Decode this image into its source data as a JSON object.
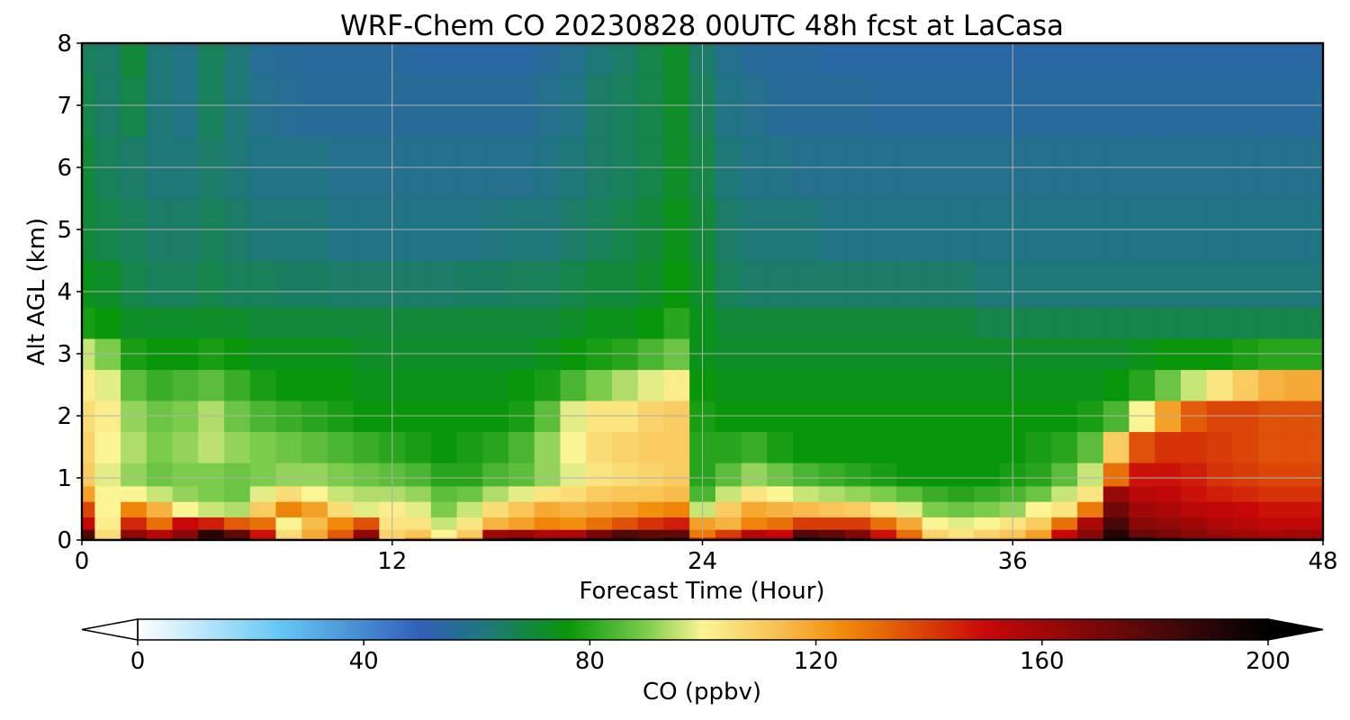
{
  "chart_data": {
    "type": "heatmap",
    "title": "WRF-Chem CO  20230828 00UTC 48h fcst at LaCasa",
    "xlabel": "Forecast Time (Hour)",
    "ylabel": "Alt AGL (km)",
    "xlim": [
      0,
      48
    ],
    "ylim": [
      0,
      8
    ],
    "xticks": [
      0,
      12,
      24,
      36,
      48
    ],
    "yticks": [
      0,
      1,
      2,
      3,
      4,
      5,
      6,
      7,
      8
    ],
    "grid": true,
    "colorbar": {
      "label": "CO  (ppbv)",
      "range": [
        0,
        200
      ],
      "ticks": [
        0,
        40,
        80,
        120,
        160,
        200
      ],
      "extend": "both",
      "orientation": "horizontal",
      "placement": "bottom",
      "stops": [
        {
          "value": 0,
          "color": "#ffffff"
        },
        {
          "value": 25,
          "color": "#66c8f5"
        },
        {
          "value": 50,
          "color": "#3060b8"
        },
        {
          "value": 62,
          "color": "#1e7878"
        },
        {
          "value": 76,
          "color": "#08960a"
        },
        {
          "value": 90,
          "color": "#7ccc4c"
        },
        {
          "value": 100,
          "color": "#fbf596"
        },
        {
          "value": 115,
          "color": "#f8b848"
        },
        {
          "value": 125,
          "color": "#f08a08"
        },
        {
          "value": 150,
          "color": "#c80808"
        },
        {
          "value": 185,
          "color": "#3c0808"
        },
        {
          "value": 200,
          "color": "#000000"
        }
      ]
    },
    "x": [
      0,
      1,
      2,
      3,
      4,
      5,
      6,
      7,
      8,
      9,
      10,
      11,
      12,
      13,
      14,
      15,
      16,
      17,
      18,
      19,
      20,
      21,
      22,
      23,
      24,
      25,
      26,
      27,
      28,
      29,
      30,
      31,
      32,
      33,
      34,
      35,
      36,
      37,
      38,
      39,
      40,
      41,
      42,
      43,
      44,
      45,
      46,
      47,
      48
    ],
    "y": [
      0,
      0.1,
      0.25,
      0.5,
      0.75,
      1,
      1.5,
      2,
      2.5,
      3,
      3.5,
      4,
      5,
      6,
      7,
      8
    ],
    "values": [
      [
        185,
        110,
        180,
        160,
        170,
        186,
        185,
        150,
        112,
        118,
        140,
        175,
        110,
        124,
        112,
        125,
        176,
        183,
        176,
        178,
        184,
        186,
        182,
        190,
        145,
        150,
        170,
        168,
        198,
        190,
        180,
        154,
        138,
        115,
        112,
        116,
        118,
        124,
        160,
        170,
        195,
        194,
        186,
        178,
        175,
        174,
        172,
        172,
        172
      ],
      [
        180,
        106,
        164,
        155,
        165,
        190,
        176,
        148,
        106,
        118,
        134,
        164,
        108,
        112,
        100,
        110,
        160,
        162,
        156,
        156,
        170,
        180,
        176,
        176,
        128,
        140,
        155,
        150,
        180,
        176,
        168,
        148,
        130,
        108,
        104,
        108,
        112,
        120,
        150,
        166,
        190,
        174,
        170,
        166,
        162,
        160,
        158,
        160,
        160
      ],
      [
        150,
        102,
        144,
        130,
        150,
        146,
        134,
        130,
        100,
        114,
        125,
        136,
        104,
        104,
        96,
        104,
        116,
        120,
        126,
        124,
        130,
        136,
        142,
        146,
        120,
        116,
        126,
        130,
        140,
        140,
        140,
        130,
        118,
        100,
        98,
        100,
        104,
        110,
        130,
        158,
        182,
        166,
        164,
        160,
        156,
        154,
        152,
        152,
        152
      ],
      [
        138,
        100,
        126,
        116,
        100,
        96,
        94,
        110,
        126,
        120,
        106,
        98,
        102,
        98,
        90,
        96,
        106,
        112,
        118,
        116,
        118,
        120,
        124,
        126,
        96,
        110,
        118,
        116,
        114,
        112,
        110,
        104,
        98,
        90,
        88,
        90,
        92,
        100,
        104,
        128,
        172,
        160,
        158,
        154,
        152,
        150,
        148,
        148,
        148
      ],
      [
        120,
        100,
        100,
        96,
        92,
        90,
        88,
        98,
        106,
        100,
        96,
        94,
        94,
        92,
        86,
        88,
        94,
        98,
        104,
        106,
        110,
        112,
        112,
        114,
        84,
        96,
        104,
        100,
        96,
        94,
        92,
        90,
        86,
        82,
        80,
        82,
        84,
        88,
        96,
        104,
        162,
        154,
        152,
        148,
        146,
        144,
        142,
        142,
        142
      ],
      [
        110,
        98,
        92,
        88,
        90,
        90,
        88,
        90,
        92,
        92,
        90,
        88,
        86,
        84,
        80,
        80,
        84,
        86,
        92,
        98,
        104,
        106,
        108,
        110,
        80,
        86,
        92,
        88,
        84,
        82,
        80,
        78,
        76,
        76,
        76,
        76,
        78,
        80,
        86,
        96,
        130,
        148,
        148,
        146,
        142,
        140,
        138,
        138,
        138
      ],
      [
        108,
        100,
        94,
        90,
        92,
        95,
        92,
        90,
        88,
        86,
        84,
        82,
        80,
        78,
        76,
        78,
        80,
        84,
        92,
        100,
        106,
        108,
        110,
        110,
        80,
        80,
        82,
        78,
        76,
        76,
        76,
        76,
        76,
        76,
        76,
        76,
        76,
        78,
        80,
        86,
        110,
        136,
        142,
        142,
        140,
        138,
        136,
        136,
        136
      ],
      [
        106,
        102,
        92,
        88,
        90,
        94,
        88,
        84,
        82,
        80,
        78,
        76,
        76,
        76,
        76,
        76,
        76,
        78,
        86,
        98,
        104,
        104,
        108,
        110,
        78,
        76,
        76,
        76,
        76,
        76,
        76,
        76,
        76,
        76,
        76,
        76,
        76,
        76,
        76,
        78,
        84,
        100,
        120,
        134,
        138,
        138,
        136,
        136,
        136
      ],
      [
        102,
        98,
        86,
        82,
        84,
        86,
        82,
        78,
        76,
        76,
        76,
        74,
        74,
        74,
        74,
        74,
        74,
        76,
        78,
        84,
        90,
        94,
        98,
        102,
        76,
        74,
        74,
        74,
        74,
        74,
        74,
        74,
        74,
        74,
        74,
        74,
        74,
        74,
        74,
        74,
        76,
        80,
        88,
        96,
        104,
        110,
        116,
        118,
        118
      ],
      [
        96,
        90,
        78,
        76,
        76,
        78,
        76,
        74,
        74,
        74,
        74,
        72,
        72,
        72,
        72,
        72,
        72,
        72,
        74,
        76,
        78,
        80,
        84,
        88,
        74,
        72,
        72,
        72,
        72,
        72,
        72,
        72,
        72,
        72,
        72,
        72,
        72,
        72,
        72,
        72,
        72,
        74,
        76,
        76,
        76,
        78,
        80,
        80,
        80
      ],
      [
        78,
        76,
        72,
        72,
        72,
        72,
        72,
        70,
        70,
        70,
        70,
        70,
        70,
        70,
        70,
        70,
        70,
        70,
        70,
        72,
        74,
        74,
        76,
        80,
        74,
        70,
        70,
        70,
        70,
        70,
        70,
        70,
        70,
        70,
        70,
        68,
        68,
        68,
        68,
        68,
        68,
        68,
        68,
        68,
        68,
        68,
        68,
        68,
        68
      ],
      [
        74,
        72,
        68,
        66,
        66,
        68,
        66,
        66,
        65,
        65,
        64,
        64,
        64,
        64,
        64,
        65,
        65,
        66,
        66,
        68,
        70,
        70,
        72,
        76,
        72,
        66,
        64,
        64,
        64,
        64,
        64,
        64,
        64,
        64,
        64,
        62,
        62,
        62,
        62,
        62,
        62,
        62,
        62,
        62,
        62,
        62,
        62,
        62,
        62
      ],
      [
        70,
        68,
        66,
        64,
        64,
        66,
        64,
        62,
        62,
        62,
        60,
        60,
        60,
        60,
        60,
        60,
        61,
        62,
        62,
        64,
        66,
        68,
        70,
        74,
        70,
        64,
        62,
        62,
        62,
        60,
        60,
        60,
        60,
        60,
        60,
        60,
        60,
        60,
        60,
        60,
        60,
        60,
        60,
        60,
        60,
        60,
        60,
        60,
        60
      ],
      [
        70,
        66,
        64,
        62,
        62,
        64,
        62,
        60,
        60,
        60,
        58,
        58,
        58,
        58,
        58,
        58,
        58,
        58,
        60,
        62,
        64,
        66,
        68,
        72,
        68,
        62,
        60,
        60,
        58,
        58,
        58,
        58,
        58,
        58,
        58,
        58,
        58,
        58,
        58,
        58,
        58,
        58,
        58,
        58,
        58,
        58,
        58,
        58,
        58
      ],
      [
        68,
        64,
        68,
        62,
        60,
        66,
        62,
        58,
        57,
        56,
        56,
        56,
        56,
        56,
        56,
        56,
        56,
        56,
        58,
        60,
        64,
        66,
        68,
        72,
        66,
        60,
        58,
        56,
        56,
        56,
        56,
        55,
        55,
        55,
        55,
        55,
        55,
        55,
        55,
        55,
        55,
        55,
        55,
        55,
        55,
        55,
        55,
        55,
        55
      ],
      [
        66,
        64,
        70,
        62,
        60,
        66,
        62,
        57,
        56,
        55,
        55,
        55,
        55,
        54,
        54,
        54,
        54,
        54,
        56,
        58,
        62,
        64,
        68,
        72,
        64,
        58,
        56,
        55,
        55,
        54,
        54,
        54,
        54,
        54,
        54,
        54,
        54,
        54,
        54,
        54,
        54,
        54,
        54,
        54,
        54,
        54,
        54,
        54,
        54
      ]
    ]
  }
}
